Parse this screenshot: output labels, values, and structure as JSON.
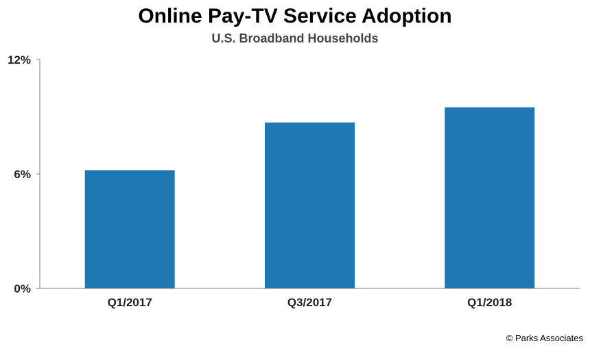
{
  "chart_data": {
    "type": "bar",
    "title": "Online Pay-TV Service Adoption",
    "subtitle": "U.S. Broadband Households",
    "categories": [
      "Q1/2017",
      "Q3/2017",
      "Q1/2018"
    ],
    "values": [
      6.2,
      8.7,
      9.5
    ],
    "unit": "%",
    "xlabel": "",
    "ylabel": "",
    "ylim": [
      0,
      12
    ],
    "yticks": [
      "0%",
      "6%",
      "12%"
    ],
    "ytick_values": [
      0,
      6,
      12
    ],
    "grid": false,
    "legend": "none",
    "bar_color": "#1f77b4"
  },
  "footer": {
    "copyright": "© Parks Associates"
  }
}
